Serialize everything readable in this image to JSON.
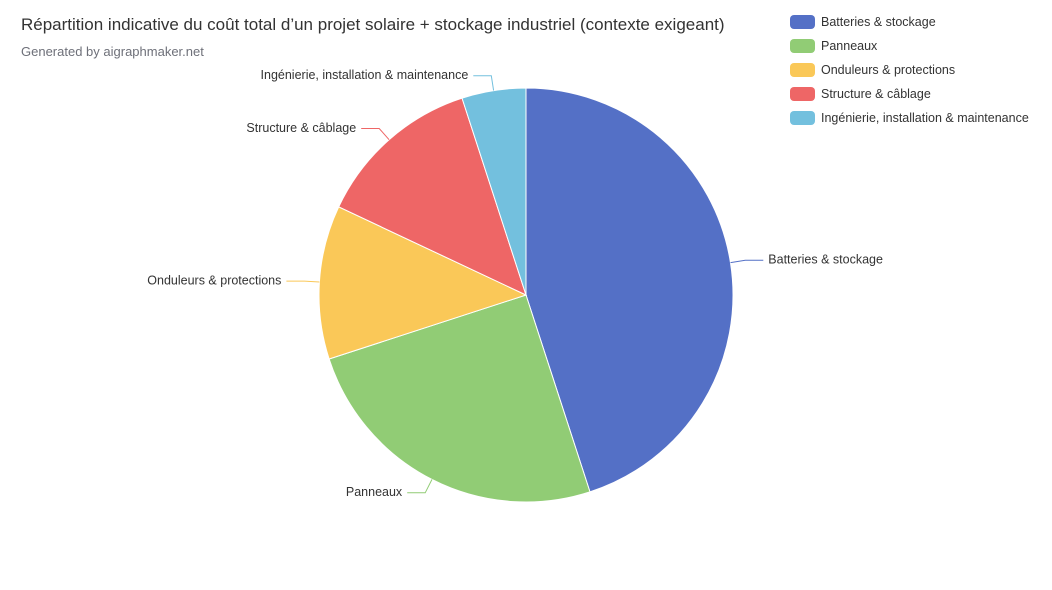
{
  "chart_data": {
    "type": "pie",
    "title": "Répartition indicative du coût total d’un projet solaire + stockage industriel (contexte exigeant)",
    "subtitle": "Generated by aigraphmaker.net",
    "legend_position": "top-right",
    "categories": [
      "Batteries & stockage",
      "Panneaux",
      "Onduleurs & protections",
      "Structure & câblage",
      "Ingénierie, installation & maintenance"
    ],
    "values": [
      45,
      25,
      12,
      13,
      5
    ],
    "colors": [
      "#5470c6",
      "#91cc75",
      "#fac858",
      "#ee6666",
      "#73c0de"
    ]
  }
}
